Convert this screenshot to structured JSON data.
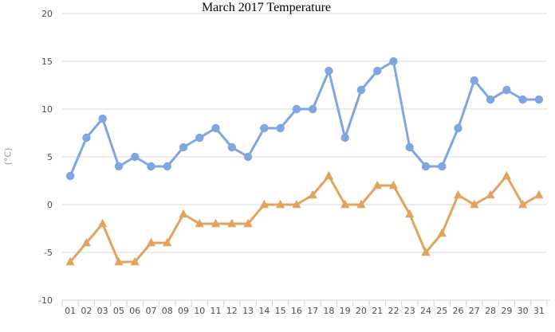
{
  "chart_data": {
    "type": "line",
    "title": "March 2017 Temperature",
    "xlabel": "",
    "ylabel": "(°C)",
    "ylim": [
      -10,
      20
    ],
    "ytick_interval": 5,
    "grid": true,
    "legend": "none",
    "categories": [
      "01",
      "02",
      "03",
      "05",
      "06",
      "07",
      "08",
      "09",
      "10",
      "11",
      "12",
      "13",
      "14",
      "15",
      "16",
      "17",
      "18",
      "19",
      "20",
      "21",
      "22",
      "23",
      "24",
      "25",
      "26",
      "27",
      "28",
      "29",
      "30",
      "31"
    ],
    "series": [
      {
        "name": "blue",
        "marker": "circle",
        "color": "#7EA6E1",
        "values": [
          3,
          7,
          9,
          4,
          5,
          4,
          4,
          6,
          7,
          8,
          6,
          5,
          8,
          8,
          10,
          10,
          14,
          7,
          12,
          14,
          15,
          6,
          4,
          4,
          8,
          13,
          11,
          12,
          11,
          11
        ]
      },
      {
        "name": "orange",
        "marker": "triangle",
        "color": "#E2A45C",
        "values": [
          -6,
          -4,
          -2,
          -6,
          -6,
          -4,
          -4,
          -1,
          -2,
          -2,
          -2,
          -2,
          0,
          0,
          0,
          1,
          3,
          0,
          0,
          2,
          2,
          -1,
          -5,
          -3,
          1,
          0,
          1,
          3,
          0,
          1
        ]
      }
    ]
  },
  "colors": {
    "gridline": "#D9D9D9",
    "axis": "#C9D4E0",
    "tick_label": "#4D4D4D",
    "title": "#000000",
    "y_axis_label": "#999999"
  }
}
